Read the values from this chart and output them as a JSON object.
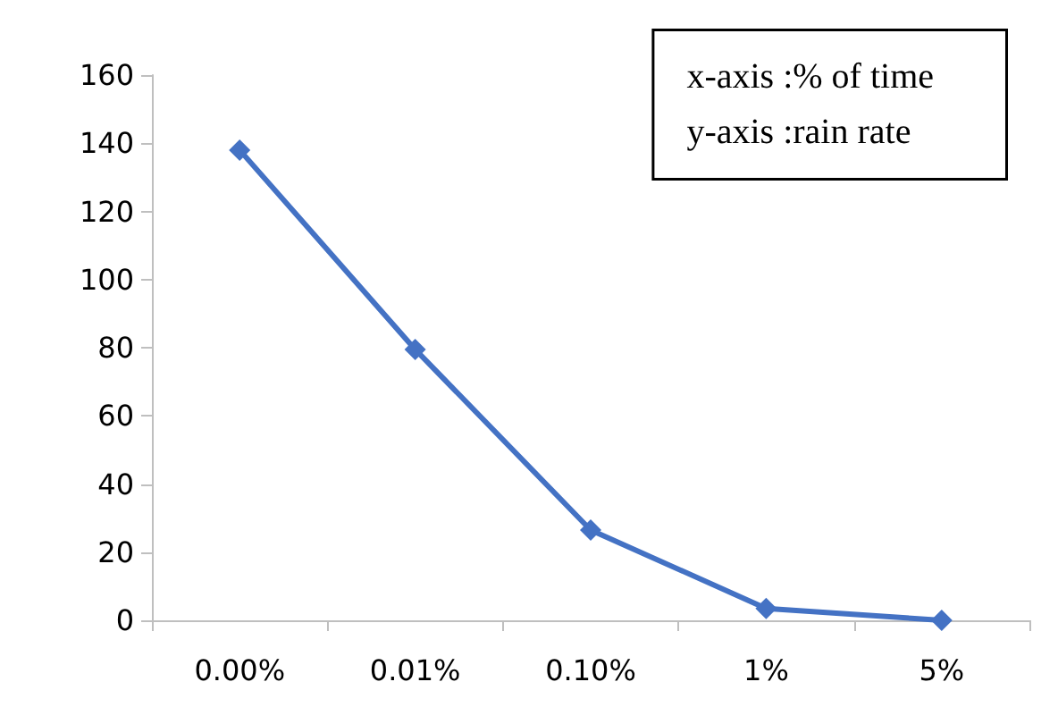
{
  "chart_data": {
    "type": "line",
    "categories": [
      "0.00%",
      "0.01%",
      "0.10%",
      "1%",
      "5%"
    ],
    "series": [
      {
        "color": "#4472c4",
        "values": [
          138,
          79.5,
          26.5,
          3.5,
          0
        ]
      }
    ],
    "ylim": [
      0,
      160
    ],
    "yticks": [
      0,
      20,
      40,
      60,
      80,
      100,
      120,
      140,
      160
    ],
    "grid": false,
    "marker": "diamond",
    "line_style": "solid",
    "annotations": [
      "x-axis :% of time",
      "y-axis :rain rate"
    ]
  }
}
